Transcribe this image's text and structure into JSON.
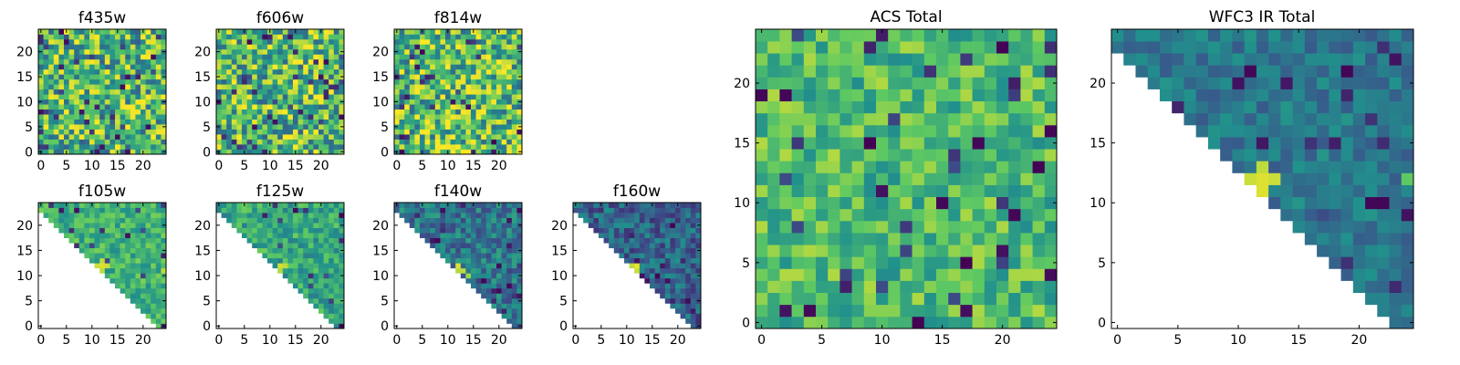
{
  "figure": {
    "grid_size": 25,
    "colormap": "viridis",
    "colors": [
      "#440154",
      "#3b528b",
      "#21918c",
      "#5ec962",
      "#fde725"
    ],
    "background": "#ffffff"
  },
  "chart_data": [
    {
      "type": "heatmap",
      "id": "f435w",
      "title": "f435w",
      "xticks": [
        "0",
        "5",
        "10",
        "15",
        "20"
      ],
      "yticks": [
        "0",
        "5",
        "10",
        "15",
        "20"
      ],
      "xlim": [
        0,
        25
      ],
      "ylim": [
        0,
        25
      ],
      "coverage": "full",
      "seed": 11,
      "mean": 0.66,
      "spread": 0.36,
      "hotspots": []
    },
    {
      "type": "heatmap",
      "id": "f606w",
      "title": "f606w",
      "xticks": [
        "0",
        "5",
        "10",
        "15",
        "20"
      ],
      "yticks": [
        "0",
        "5",
        "10",
        "15",
        "20"
      ],
      "xlim": [
        0,
        25
      ],
      "ylim": [
        0,
        25
      ],
      "coverage": "full",
      "seed": 23,
      "mean": 0.68,
      "spread": 0.36,
      "hotspots": []
    },
    {
      "type": "heatmap",
      "id": "f814w",
      "title": "f814w",
      "xticks": [
        "0",
        "5",
        "10",
        "15",
        "20"
      ],
      "yticks": [
        "0",
        "5",
        "10",
        "15",
        "20"
      ],
      "xlim": [
        0,
        25
      ],
      "ylim": [
        0,
        25
      ],
      "coverage": "full",
      "seed": 37,
      "mean": 0.7,
      "spread": 0.36,
      "hotspots": []
    },
    {
      "type": "heatmap",
      "id": "f105w",
      "title": "f105w",
      "xticks": [
        "0",
        "5",
        "10",
        "15",
        "20"
      ],
      "yticks": [
        "0",
        "5",
        "10",
        "15",
        "20"
      ],
      "xlim": [
        0,
        25
      ],
      "ylim": [
        0,
        25
      ],
      "coverage": "triangle",
      "seed": 41,
      "mean": 0.64,
      "spread": 0.16,
      "hotspots": [
        [
          12,
          12,
          0.95
        ],
        [
          11,
          12,
          0.92
        ],
        [
          13,
          12,
          0.92
        ],
        [
          12,
          11,
          0.9
        ],
        [
          12,
          13,
          0.9
        ],
        [
          18,
          0,
          0.0
        ],
        [
          18,
          1,
          0.02
        ],
        [
          17,
          1,
          0.05
        ],
        [
          24,
          11,
          0.9
        ]
      ]
    },
    {
      "type": "heatmap",
      "id": "f125w",
      "title": "f125w",
      "xticks": [
        "0",
        "5",
        "10",
        "15",
        "20"
      ],
      "yticks": [
        "0",
        "5",
        "10",
        "15",
        "20"
      ],
      "xlim": [
        0,
        25
      ],
      "ylim": [
        0,
        25
      ],
      "coverage": "triangle",
      "seed": 53,
      "mean": 0.6,
      "spread": 0.18,
      "hotspots": [
        [
          12,
          12,
          0.93
        ],
        [
          13,
          12,
          0.9
        ],
        [
          12,
          11,
          0.88
        ],
        [
          10,
          9,
          0.0
        ],
        [
          11,
          10,
          0.1
        ],
        [
          24,
          0,
          0.05
        ]
      ]
    },
    {
      "type": "heatmap",
      "id": "f140w",
      "title": "f140w",
      "xticks": [
        "0",
        "5",
        "10",
        "15",
        "20"
      ],
      "yticks": [
        "0",
        "5",
        "10",
        "15",
        "20"
      ],
      "xlim": [
        0,
        25
      ],
      "ylim": [
        0,
        25
      ],
      "coverage": "triangle",
      "seed": 67,
      "mean": 0.4,
      "spread": 0.18,
      "hotspots": [
        [
          12,
          12,
          0.95
        ],
        [
          13,
          11,
          0.9
        ],
        [
          12,
          11,
          0.88
        ],
        [
          14,
          10,
          0.85
        ],
        [
          17,
          9,
          0.02
        ],
        [
          10,
          8,
          0.05
        ],
        [
          19,
          7,
          0.1
        ]
      ]
    },
    {
      "type": "heatmap",
      "id": "f160w",
      "title": "f160w",
      "xticks": [
        "0",
        "5",
        "10",
        "15",
        "20"
      ],
      "yticks": [
        "0",
        "5",
        "10",
        "15",
        "20"
      ],
      "xlim": [
        0,
        25
      ],
      "ylim": [
        0,
        25
      ],
      "coverage": "triangle",
      "seed": 79,
      "mean": 0.32,
      "spread": 0.18,
      "hotspots": [
        [
          12,
          12,
          0.97
        ],
        [
          12,
          11,
          0.92
        ],
        [
          11,
          12,
          0.9
        ],
        [
          13,
          10,
          0.05
        ],
        [
          16,
          10,
          0.02
        ],
        [
          14,
          6,
          0.03
        ],
        [
          18,
          9,
          0.05
        ]
      ]
    },
    {
      "type": "heatmap",
      "id": "acs-total",
      "title": "ACS Total",
      "xticks": [
        "0",
        "5",
        "10",
        "15",
        "20"
      ],
      "yticks": [
        "0",
        "5",
        "10",
        "15",
        "20"
      ],
      "xlim": [
        0,
        25
      ],
      "ylim": [
        0,
        25
      ],
      "coverage": "full",
      "seed": 97,
      "mean": 0.68,
      "spread": 0.2,
      "hotspots": [
        [
          9,
          15,
          0.0
        ],
        [
          18,
          15,
          0.02
        ],
        [
          24,
          16,
          0.02
        ],
        [
          23,
          13,
          0.0
        ],
        [
          21,
          9,
          0.02
        ],
        [
          20,
          6,
          0.05
        ],
        [
          17,
          5,
          0.0
        ],
        [
          10,
          11,
          0.05
        ],
        [
          0,
          19,
          0.02
        ]
      ]
    },
    {
      "type": "heatmap",
      "id": "wfc3-ir-total",
      "title": "WFC3 IR Total",
      "xticks": [
        "0",
        "5",
        "10",
        "15",
        "20"
      ],
      "yticks": [
        "0",
        "5",
        "10",
        "15",
        "20"
      ],
      "xlim": [
        0,
        25
      ],
      "ylim": [
        0,
        25
      ],
      "coverage": "triangle",
      "seed": 101,
      "mean": 0.4,
      "spread": 0.12,
      "hotspots": [
        [
          12,
          12,
          0.95
        ],
        [
          12,
          11,
          0.95
        ],
        [
          11,
          12,
          0.92
        ],
        [
          13,
          12,
          0.92
        ],
        [
          12,
          13,
          0.9
        ],
        [
          9,
          10,
          0.05
        ],
        [
          21,
          10,
          0.02
        ],
        [
          22,
          10,
          0.02
        ],
        [
          10,
          9,
          0.1
        ],
        [
          21,
          17,
          0.15
        ],
        [
          18,
          1,
          0.05
        ],
        [
          17,
          0,
          0.02
        ],
        [
          24,
          12,
          0.75
        ]
      ]
    }
  ]
}
